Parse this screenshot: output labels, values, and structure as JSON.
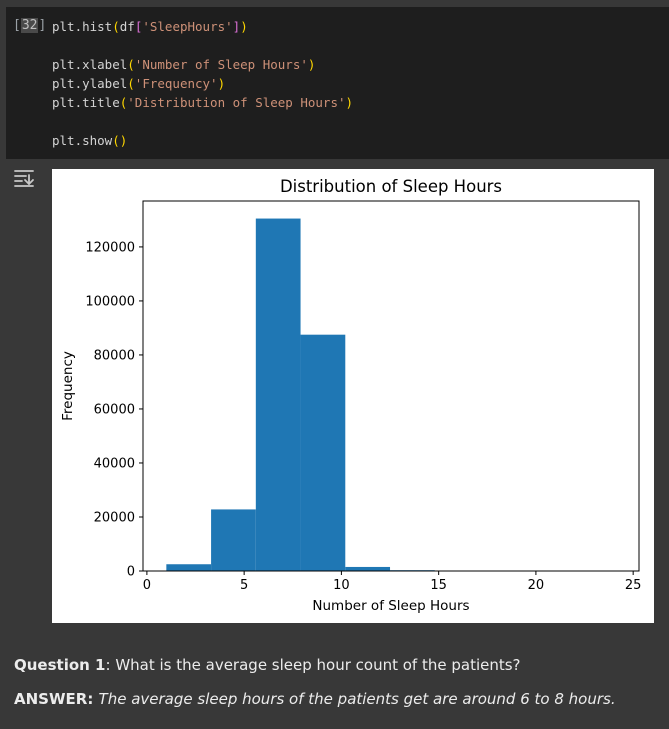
{
  "cell": {
    "execution_prefix": "[",
    "execution_count": "32",
    "execution_suffix": "]",
    "lines": [
      [
        {
          "t": "plt.hist",
          "c": ""
        },
        {
          "t": "(",
          "c": "br1"
        },
        {
          "t": "df",
          "c": ""
        },
        {
          "t": "[",
          "c": "br2"
        },
        {
          "t": "'SleepHours'",
          "c": "str"
        },
        {
          "t": "]",
          "c": "br2"
        },
        {
          "t": ")",
          "c": "br1"
        }
      ],
      [],
      [
        {
          "t": "plt.xlabel",
          "c": ""
        },
        {
          "t": "(",
          "c": "br1"
        },
        {
          "t": "'Number of Sleep Hours'",
          "c": "str"
        },
        {
          "t": ")",
          "c": "br1"
        }
      ],
      [
        {
          "t": "plt.ylabel",
          "c": ""
        },
        {
          "t": "(",
          "c": "br1"
        },
        {
          "t": "'Frequency'",
          "c": "str"
        },
        {
          "t": ")",
          "c": "br1"
        }
      ],
      [
        {
          "t": "plt.title",
          "c": ""
        },
        {
          "t": "(",
          "c": "br1"
        },
        {
          "t": "'Distribution of Sleep Hours'",
          "c": "str"
        },
        {
          "t": ")",
          "c": "br1"
        }
      ],
      [],
      [
        {
          "t": "plt.show",
          "c": ""
        },
        {
          "t": "()",
          "c": "br1"
        }
      ]
    ]
  },
  "output_icon": "output-toggle-icon",
  "chart_data": {
    "type": "bar",
    "title": "Distribution of Sleep Hours",
    "xlabel": "Number of Sleep Hours",
    "ylabel": "Frequency",
    "xlim": [
      -0.2,
      25.3
    ],
    "ylim": [
      0,
      137000
    ],
    "xticks": [
      0,
      5,
      10,
      15,
      20,
      25
    ],
    "xtick_labels": [
      "0",
      "5",
      "10",
      "15",
      "20",
      "25"
    ],
    "yticks": [
      0,
      20000,
      40000,
      60000,
      80000,
      100000,
      120000
    ],
    "ytick_labels": [
      "0",
      "20000",
      "40000",
      "60000",
      "80000",
      "100000",
      "120000"
    ],
    "bin_edges": [
      1,
      3.3,
      5.6,
      7.9,
      10.2,
      12.5,
      14.8,
      17.1,
      19.4,
      21.7,
      24
    ],
    "counts": [
      2500,
      22800,
      130500,
      87500,
      1500,
      300,
      150,
      80,
      0,
      0
    ],
    "color": "#1f77b4"
  },
  "qa": {
    "question_label": "Question 1",
    "question_text": ": What is the average sleep hour count of the patients?",
    "answer_label": "ANSWER",
    "answer_text": "The average sleep hours of the patients get are around 6 to 8 hours."
  }
}
